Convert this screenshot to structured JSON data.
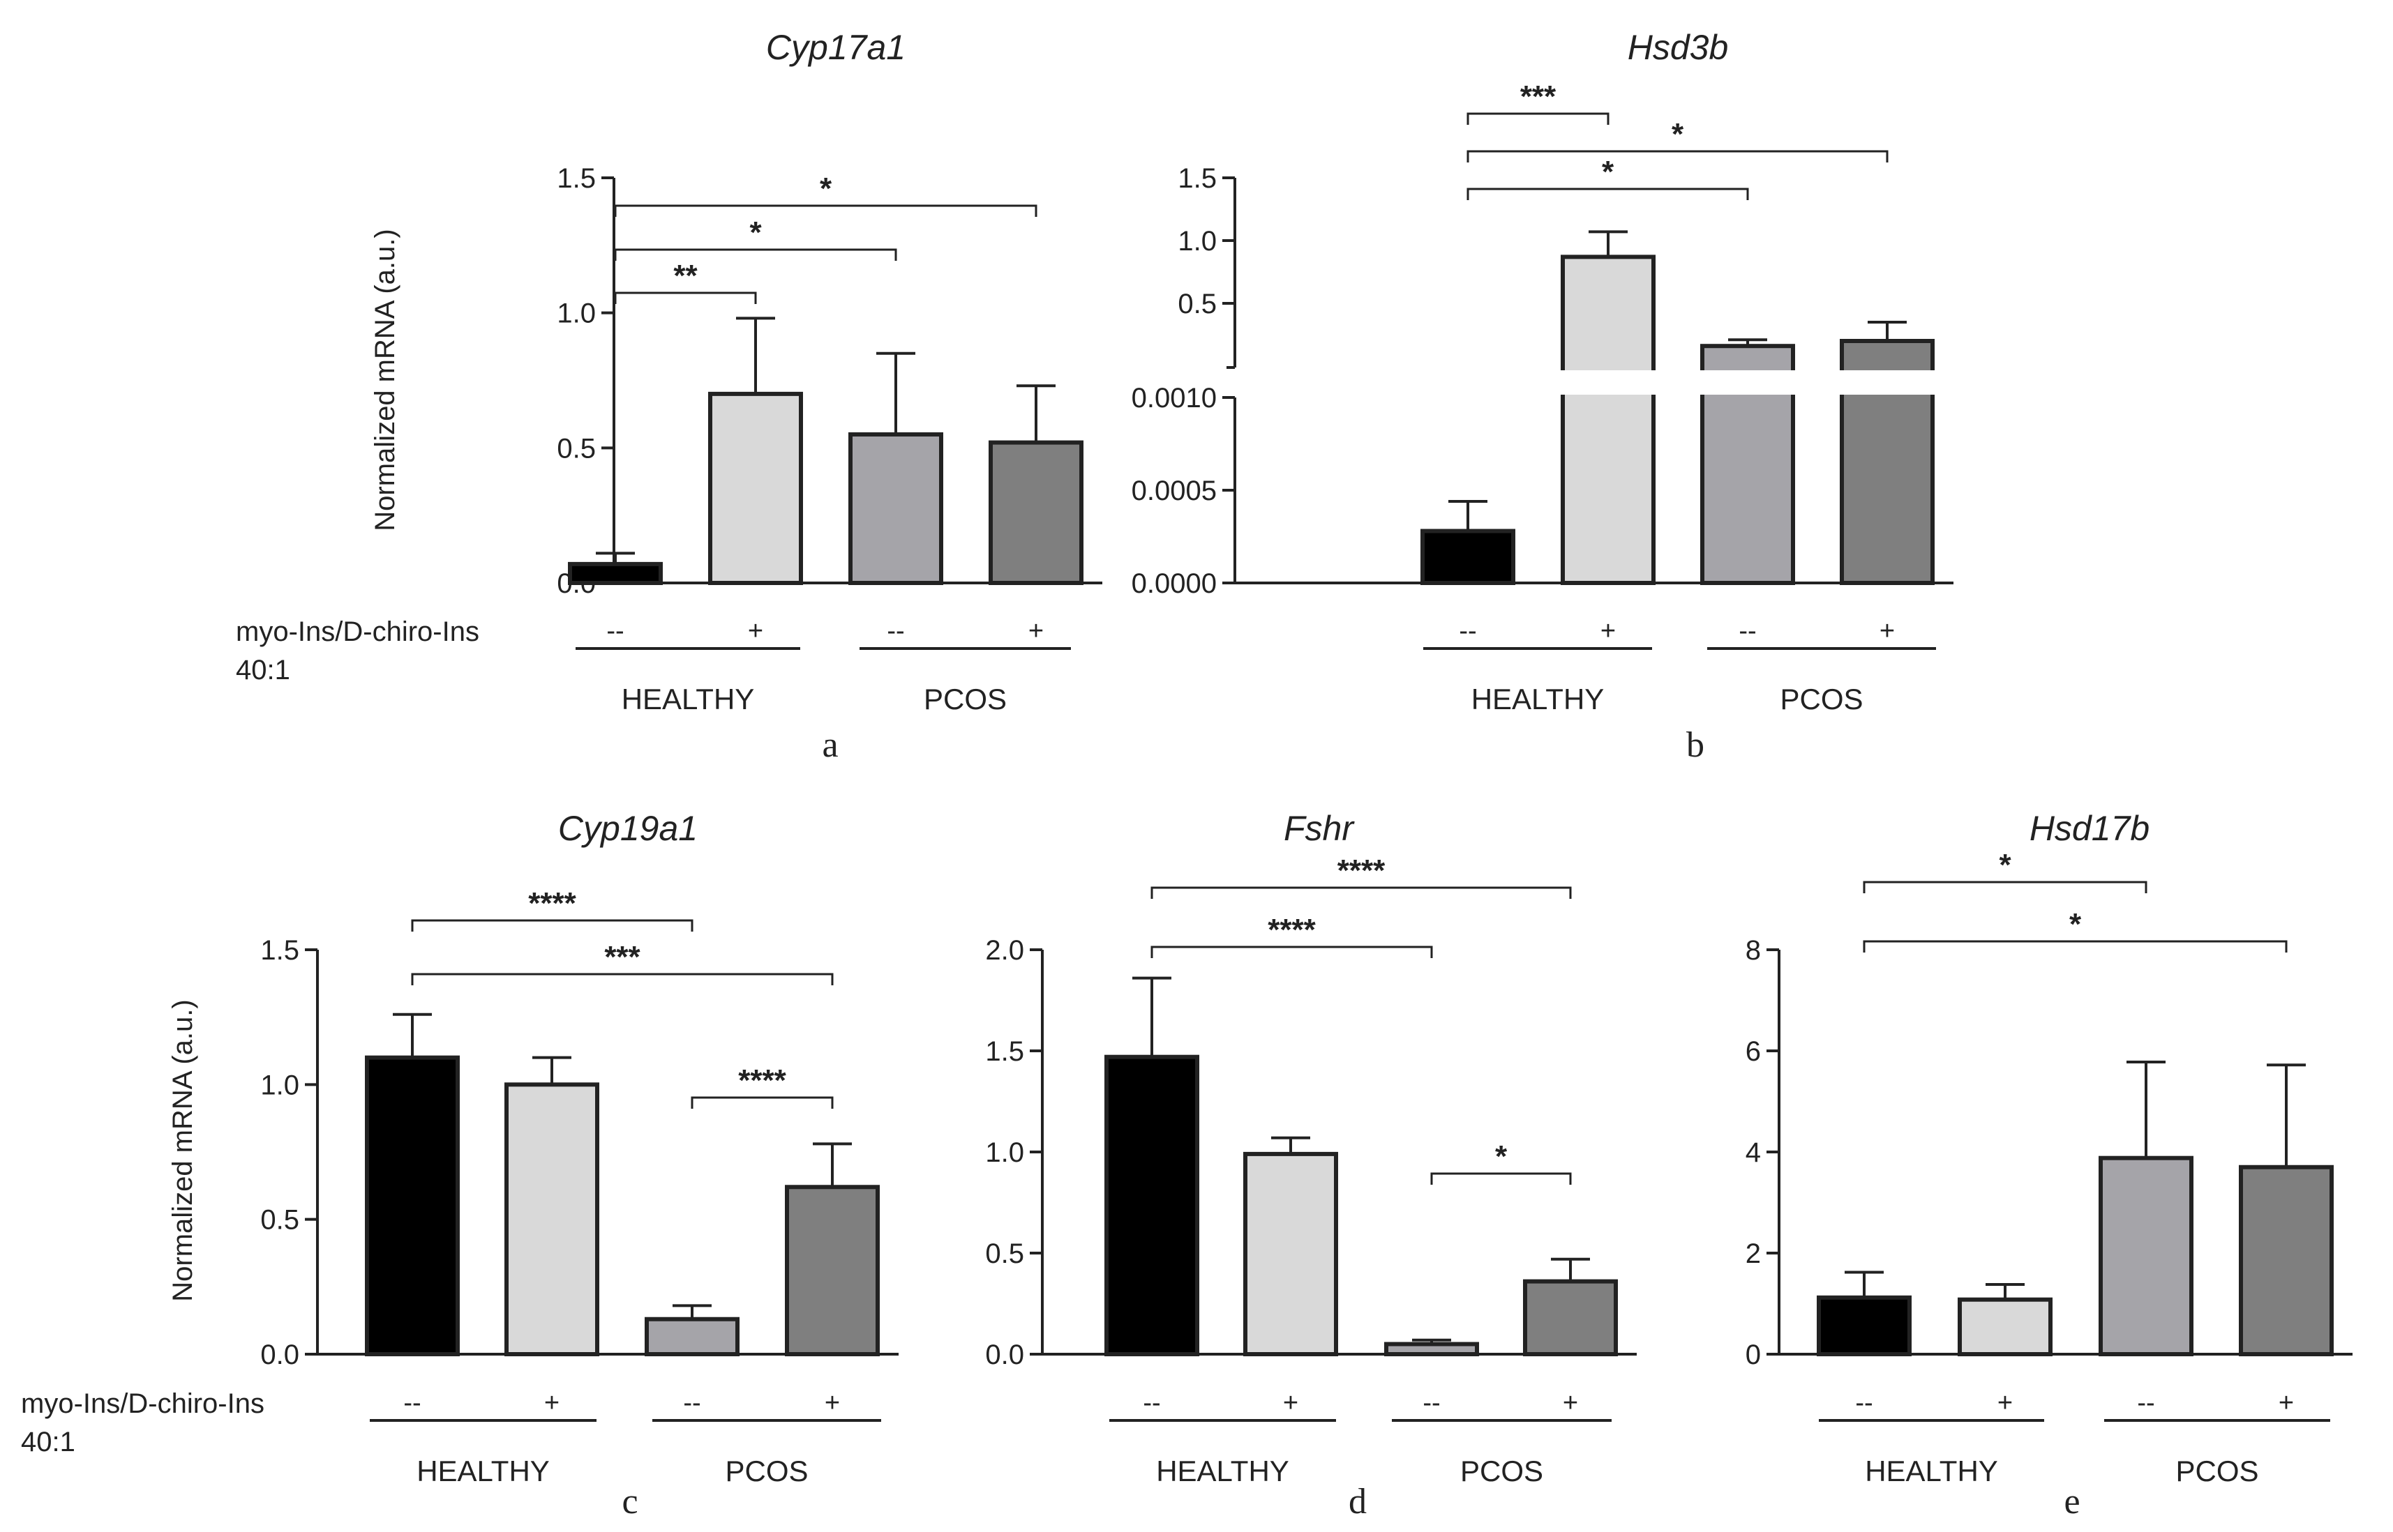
{
  "treatment_label": "myo-Ins/D-chiro-Ins",
  "treatment_ratio": "40:1",
  "group_labels": [
    "HEALTHY",
    "PCOS"
  ],
  "condition_labels": [
    "--",
    "+",
    "--",
    "+"
  ],
  "colors": {
    "bar_fills": [
      "#000000",
      "#d9d9d9",
      "#a5a4a9",
      "#7f7f7f"
    ],
    "ink": "#222222"
  },
  "chart_data": [
    {
      "panel": "a",
      "type": "bar",
      "title": "Cyp17a1",
      "ylabel": "Normalized mRNA (a.u.)",
      "ylim": [
        0,
        1.5
      ],
      "yticks": [
        "0.0",
        "0.5",
        "1.0",
        "1.5"
      ],
      "categories": [
        "HEALTHY --",
        "HEALTHY +",
        "PCOS --",
        "PCOS +"
      ],
      "values": [
        0.07,
        0.7,
        0.55,
        0.52
      ],
      "errors": [
        0.04,
        0.28,
        0.3,
        0.21
      ],
      "significance": [
        {
          "from": 0,
          "to": 1,
          "label": "**"
        },
        {
          "from": 0,
          "to": 2,
          "label": "*"
        },
        {
          "from": 0,
          "to": 3,
          "label": "*"
        }
      ]
    },
    {
      "panel": "b",
      "type": "bar",
      "title": "Hsd3b",
      "ylabel": "",
      "broken_axis": true,
      "ylim_lower": [
        0,
        0.001
      ],
      "ylim_upper": [
        0,
        1.5
      ],
      "yticks_lower": [
        "0.0000",
        "0.0005",
        "0.0010"
      ],
      "yticks_upper": [
        "0.5",
        "1.0",
        "1.5"
      ],
      "categories": [
        "HEALTHY --",
        "HEALTHY +",
        "PCOS --",
        "PCOS +"
      ],
      "values": [
        0.00028,
        0.87,
        0.16,
        0.2
      ],
      "errors": [
        0.00016,
        0.2,
        0.05,
        0.15
      ],
      "significance": [
        {
          "from": 0,
          "to": 1,
          "label": "***"
        },
        {
          "from": 0,
          "to": 3,
          "label": "*"
        },
        {
          "from": 0,
          "to": 2,
          "label": "*"
        }
      ]
    },
    {
      "panel": "c",
      "type": "bar",
      "title": "Cyp19a1",
      "ylabel": "Normalized mRNA (a.u.)",
      "ylim": [
        0,
        1.5
      ],
      "yticks": [
        "0.0",
        "0.5",
        "1.0",
        "1.5"
      ],
      "categories": [
        "HEALTHY --",
        "HEALTHY +",
        "PCOS --",
        "PCOS +"
      ],
      "values": [
        1.1,
        1.0,
        0.13,
        0.62
      ],
      "errors": [
        0.16,
        0.1,
        0.05,
        0.16
      ],
      "significance": [
        {
          "from": 0,
          "to": 2,
          "label": "****"
        },
        {
          "from": 0,
          "to": 3,
          "label": "***"
        },
        {
          "from": 2,
          "to": 3,
          "label": "****"
        }
      ]
    },
    {
      "panel": "d",
      "type": "bar",
      "title": "Fshr",
      "ylabel": "",
      "ylim": [
        0,
        2.0
      ],
      "yticks": [
        "0.0",
        "0.5",
        "1.0",
        "1.5",
        "2.0"
      ],
      "categories": [
        "HEALTHY --",
        "HEALTHY +",
        "PCOS --",
        "PCOS +"
      ],
      "values": [
        1.47,
        0.99,
        0.05,
        0.36
      ],
      "errors": [
        0.39,
        0.08,
        0.02,
        0.11
      ],
      "significance": [
        {
          "from": 0,
          "to": 3,
          "label": "****"
        },
        {
          "from": 0,
          "to": 2,
          "label": "****"
        },
        {
          "from": 2,
          "to": 3,
          "label": "*"
        }
      ]
    },
    {
      "panel": "e",
      "type": "bar",
      "title": "Hsd17b",
      "ylabel": "",
      "ylim": [
        0,
        8
      ],
      "yticks": [
        "0",
        "2",
        "4",
        "6",
        "8"
      ],
      "categories": [
        "HEALTHY --",
        "HEALTHY +",
        "PCOS --",
        "PCOS +"
      ],
      "values": [
        1.12,
        1.08,
        3.88,
        3.7
      ],
      "errors": [
        0.5,
        0.3,
        1.9,
        2.02
      ],
      "significance": [
        {
          "from": 0,
          "to": 2,
          "label": "*"
        },
        {
          "from": 0,
          "to": 3,
          "label": "*"
        }
      ]
    }
  ]
}
